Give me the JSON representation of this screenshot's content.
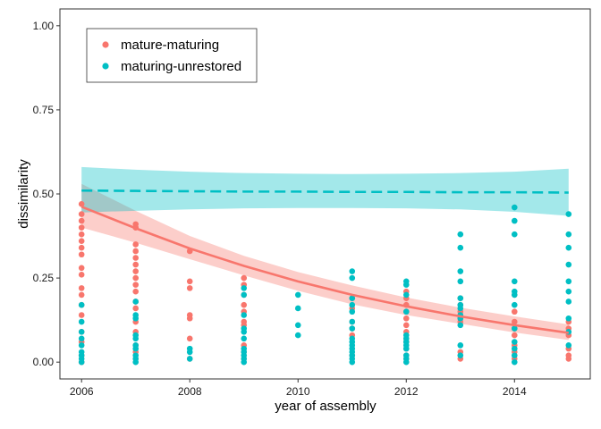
{
  "chart_data": {
    "type": "scatter",
    "title": "",
    "xlabel": "year of assembly",
    "ylabel": "dissimilarity",
    "xlim": [
      2005.6,
      2015.4
    ],
    "ylim": [
      -0.05,
      1.05
    ],
    "x_ticks": [
      2006,
      2008,
      2010,
      2012,
      2014
    ],
    "x_tick_labels": [
      "2006",
      "2008",
      "2010",
      "2012",
      "2014"
    ],
    "y_ticks": [
      0,
      0.25,
      0.5,
      0.75,
      1.0
    ],
    "y_tick_labels": [
      "0.00",
      "0.25",
      "0.50",
      "0.75",
      "1.00"
    ],
    "grid": false,
    "legend_position": "top-left",
    "series": [
      {
        "name": "mature-maturing",
        "color": "#F8766D",
        "ribbon_color": "#F8766D",
        "points": [
          [
            2006,
            0.47
          ],
          [
            2006,
            0.44
          ],
          [
            2006,
            0.42
          ],
          [
            2006,
            0.4
          ],
          [
            2006,
            0.38
          ],
          [
            2006,
            0.36
          ],
          [
            2006,
            0.34
          ],
          [
            2006,
            0.32
          ],
          [
            2006,
            0.28
          ],
          [
            2006,
            0.26
          ],
          [
            2006,
            0.22
          ],
          [
            2006,
            0.2
          ],
          [
            2006,
            0.17
          ],
          [
            2006,
            0.14
          ],
          [
            2006,
            0.09
          ],
          [
            2006,
            0.06
          ],
          [
            2006,
            0.02
          ],
          [
            2006,
            0.0
          ],
          [
            2007,
            0.41
          ],
          [
            2007,
            0.4
          ],
          [
            2007,
            0.35
          ],
          [
            2007,
            0.33
          ],
          [
            2007,
            0.31
          ],
          [
            2007,
            0.29
          ],
          [
            2007,
            0.27
          ],
          [
            2007,
            0.25
          ],
          [
            2007,
            0.23
          ],
          [
            2007,
            0.21
          ],
          [
            2007,
            0.18
          ],
          [
            2007,
            0.16
          ],
          [
            2007,
            0.12
          ],
          [
            2007,
            0.09
          ],
          [
            2007,
            0.05
          ],
          [
            2007,
            0.03
          ],
          [
            2007,
            0.01
          ],
          [
            2008,
            0.33
          ],
          [
            2008,
            0.24
          ],
          [
            2008,
            0.22
          ],
          [
            2008,
            0.14
          ],
          [
            2008,
            0.13
          ],
          [
            2008,
            0.07
          ],
          [
            2008,
            0.01
          ],
          [
            2009,
            0.25
          ],
          [
            2009,
            0.23
          ],
          [
            2009,
            0.2
          ],
          [
            2009,
            0.17
          ],
          [
            2009,
            0.15
          ],
          [
            2009,
            0.12
          ],
          [
            2009,
            0.11
          ],
          [
            2009,
            0.05
          ],
          [
            2009,
            0.03
          ],
          [
            2009,
            0.01
          ],
          [
            2011,
            0.19
          ],
          [
            2011,
            0.16
          ],
          [
            2011,
            0.12
          ],
          [
            2011,
            0.1
          ],
          [
            2011,
            0.08
          ],
          [
            2011,
            0.02
          ],
          [
            2012,
            0.21
          ],
          [
            2012,
            0.19
          ],
          [
            2012,
            0.17
          ],
          [
            2012,
            0.15
          ],
          [
            2012,
            0.13
          ],
          [
            2012,
            0.11
          ],
          [
            2012,
            0.09
          ],
          [
            2012,
            0.07
          ],
          [
            2012,
            0.06
          ],
          [
            2012,
            0.04
          ],
          [
            2012,
            0.02
          ],
          [
            2012,
            0.01
          ],
          [
            2013,
            0.19
          ],
          [
            2013,
            0.17
          ],
          [
            2013,
            0.15
          ],
          [
            2013,
            0.13
          ],
          [
            2013,
            0.12
          ],
          [
            2013,
            0.03
          ],
          [
            2013,
            0.01
          ],
          [
            2014,
            0.2
          ],
          [
            2014,
            0.15
          ],
          [
            2014,
            0.12
          ],
          [
            2014,
            0.1
          ],
          [
            2014,
            0.08
          ],
          [
            2014,
            0.05
          ],
          [
            2014,
            0.03
          ],
          [
            2014,
            0.01
          ],
          [
            2015,
            0.12
          ],
          [
            2015,
            0.1
          ],
          [
            2015,
            0.08
          ],
          [
            2015,
            0.04
          ],
          [
            2015,
            0.02
          ],
          [
            2015,
            0.01
          ]
        ],
        "fit": {
          "style": "solid",
          "x": [
            2006,
            2007,
            2008,
            2009,
            2010,
            2011,
            2012,
            2013,
            2014,
            2015
          ],
          "y": [
            0.462,
            0.398,
            0.338,
            0.286,
            0.24,
            0.2,
            0.166,
            0.136,
            0.11,
            0.087
          ],
          "lower": [
            0.4,
            0.355,
            0.306,
            0.258,
            0.212,
            0.172,
            0.14,
            0.114,
            0.088,
            0.066
          ],
          "upper": [
            0.53,
            0.45,
            0.375,
            0.316,
            0.268,
            0.228,
            0.192,
            0.162,
            0.136,
            0.112
          ]
        }
      },
      {
        "name": "maturing-unrestored",
        "color": "#00BFC4",
        "ribbon_color": "#00BFC4",
        "points": [
          [
            2006,
            0.17
          ],
          [
            2006,
            0.12
          ],
          [
            2006,
            0.09
          ],
          [
            2006,
            0.07
          ],
          [
            2006,
            0.05
          ],
          [
            2006,
            0.03
          ],
          [
            2006,
            0.02
          ],
          [
            2006,
            0.01
          ],
          [
            2006,
            0.0
          ],
          [
            2007,
            0.18
          ],
          [
            2007,
            0.14
          ],
          [
            2007,
            0.13
          ],
          [
            2007,
            0.08
          ],
          [
            2007,
            0.07
          ],
          [
            2007,
            0.05
          ],
          [
            2007,
            0.04
          ],
          [
            2007,
            0.02
          ],
          [
            2007,
            0.01
          ],
          [
            2007,
            0.0
          ],
          [
            2008,
            0.04
          ],
          [
            2008,
            0.03
          ],
          [
            2008,
            0.01
          ],
          [
            2009,
            0.22
          ],
          [
            2009,
            0.2
          ],
          [
            2009,
            0.14
          ],
          [
            2009,
            0.1
          ],
          [
            2009,
            0.09
          ],
          [
            2009,
            0.07
          ],
          [
            2009,
            0.04
          ],
          [
            2009,
            0.03
          ],
          [
            2009,
            0.02
          ],
          [
            2009,
            0.01
          ],
          [
            2009,
            0.0
          ],
          [
            2010,
            0.2
          ],
          [
            2010,
            0.16
          ],
          [
            2010,
            0.11
          ],
          [
            2010,
            0.08
          ],
          [
            2011,
            0.27
          ],
          [
            2011,
            0.25
          ],
          [
            2011,
            0.19
          ],
          [
            2011,
            0.17
          ],
          [
            2011,
            0.15
          ],
          [
            2011,
            0.12
          ],
          [
            2011,
            0.1
          ],
          [
            2011,
            0.07
          ],
          [
            2011,
            0.06
          ],
          [
            2011,
            0.05
          ],
          [
            2011,
            0.04
          ],
          [
            2011,
            0.03
          ],
          [
            2011,
            0.02
          ],
          [
            2011,
            0.01
          ],
          [
            2011,
            0.0
          ],
          [
            2012,
            0.24
          ],
          [
            2012,
            0.23
          ],
          [
            2012,
            0.2
          ],
          [
            2012,
            0.15
          ],
          [
            2012,
            0.08
          ],
          [
            2012,
            0.07
          ],
          [
            2012,
            0.06
          ],
          [
            2012,
            0.05
          ],
          [
            2012,
            0.04
          ],
          [
            2012,
            0.02
          ],
          [
            2012,
            0.01
          ],
          [
            2012,
            0.0
          ],
          [
            2013,
            0.38
          ],
          [
            2013,
            0.34
          ],
          [
            2013,
            0.27
          ],
          [
            2013,
            0.24
          ],
          [
            2013,
            0.19
          ],
          [
            2013,
            0.17
          ],
          [
            2013,
            0.16
          ],
          [
            2013,
            0.14
          ],
          [
            2013,
            0.13
          ],
          [
            2013,
            0.11
          ],
          [
            2013,
            0.05
          ],
          [
            2013,
            0.02
          ],
          [
            2014,
            0.46
          ],
          [
            2014,
            0.42
          ],
          [
            2014,
            0.38
          ],
          [
            2014,
            0.24
          ],
          [
            2014,
            0.21
          ],
          [
            2014,
            0.2
          ],
          [
            2014,
            0.17
          ],
          [
            2014,
            0.1
          ],
          [
            2014,
            0.06
          ],
          [
            2014,
            0.04
          ],
          [
            2014,
            0.02
          ],
          [
            2014,
            0.0
          ],
          [
            2015,
            0.44
          ],
          [
            2015,
            0.38
          ],
          [
            2015,
            0.34
          ],
          [
            2015,
            0.29
          ],
          [
            2015,
            0.24
          ],
          [
            2015,
            0.21
          ],
          [
            2015,
            0.18
          ],
          [
            2015,
            0.13
          ],
          [
            2015,
            0.09
          ],
          [
            2015,
            0.05
          ]
        ],
        "fit": {
          "style": "dashed",
          "x": [
            2006,
            2007,
            2008,
            2009,
            2010,
            2011,
            2012,
            2013,
            2014,
            2015
          ],
          "y": [
            0.51,
            0.509,
            0.508,
            0.507,
            0.507,
            0.506,
            0.506,
            0.505,
            0.505,
            0.504
          ],
          "lower": [
            0.445,
            0.45,
            0.454,
            0.457,
            0.458,
            0.458,
            0.457,
            0.454,
            0.447,
            0.435
          ],
          "upper": [
            0.58,
            0.572,
            0.566,
            0.562,
            0.56,
            0.559,
            0.56,
            0.562,
            0.566,
            0.575
          ]
        }
      }
    ]
  }
}
